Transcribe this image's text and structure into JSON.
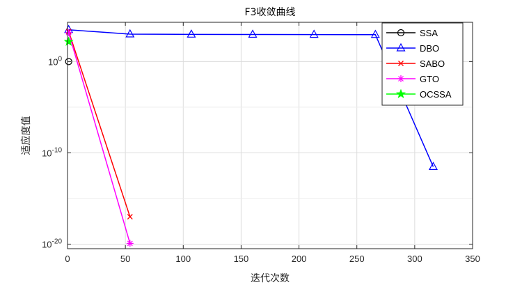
{
  "chart_data": {
    "type": "line",
    "title": "F3收敛曲线",
    "xlabel": "迭代次数",
    "ylabel": "适应度值",
    "xlim": [
      0,
      350
    ],
    "ylim_log10": [
      -20.5,
      4.3
    ],
    "yscale": "log",
    "xticks": [
      "0",
      "50",
      "100",
      "150",
      "200",
      "250",
      "300",
      "350"
    ],
    "yticks": [
      {
        "base": "10",
        "exp": "0",
        "log10": 0
      },
      {
        "base": "10",
        "exp": "-10",
        "log10": -10
      },
      {
        "base": "10",
        "exp": "-20",
        "log10": -20
      }
    ],
    "grid": true,
    "legend_position": "top-right",
    "series": [
      {
        "name": "SSA",
        "color": "#000000",
        "marker": "circle",
        "points": [
          [
            1,
            1.0
          ]
        ]
      },
      {
        "name": "DBO",
        "color": "#0000ff",
        "marker": "triangle",
        "points": [
          [
            1,
            3000
          ],
          [
            54,
            1000
          ],
          [
            107,
            950
          ],
          [
            160,
            920
          ],
          [
            213,
            900
          ],
          [
            266,
            880
          ],
          [
            316,
            3e-12
          ]
        ]
      },
      {
        "name": "SABO",
        "color": "#ff0000",
        "marker": "x",
        "points": [
          [
            1,
            2000
          ],
          [
            54,
            1e-17
          ]
        ]
      },
      {
        "name": "GTO",
        "color": "#ff00ff",
        "marker": "star",
        "points": [
          [
            1,
            1500
          ],
          [
            54,
            1.2e-20
          ]
        ]
      },
      {
        "name": "OCSSA",
        "color": "#00ff00",
        "marker": "pentagram",
        "points": [
          [
            1,
            150
          ]
        ]
      }
    ]
  }
}
